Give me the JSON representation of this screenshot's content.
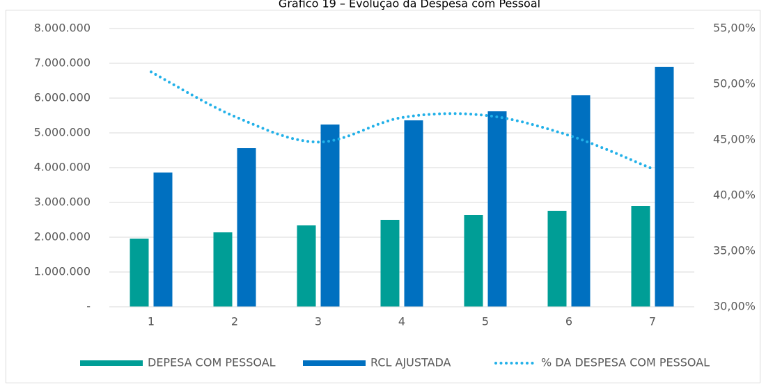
{
  "chart_data": {
    "type": "bar_line",
    "title": "Gráfico 19 – Evolução da Despesa com Pessoal",
    "categories": [
      "1",
      "2",
      "3",
      "4",
      "5",
      "6",
      "7"
    ],
    "series": [
      {
        "name": "DEPESA COM PESSOAL",
        "color": "#009e96",
        "type": "bar",
        "values": [
          1960000,
          2140000,
          2340000,
          2500000,
          2640000,
          2760000,
          2900000
        ]
      },
      {
        "name": "RCL AJUSTADA",
        "color": "#0070c0",
        "type": "bar",
        "values": [
          3860000,
          4560000,
          5240000,
          5360000,
          5620000,
          6080000,
          6900000
        ]
      },
      {
        "name": "% DA DESPESA COM PESSOAL",
        "color": "#21b0e8",
        "type": "line",
        "axis": "y2",
        "style": "dotted",
        "values": [
          51.1,
          47.1,
          44.8,
          47.0,
          47.2,
          45.4,
          42.4
        ]
      }
    ],
    "ylim": [
      0,
      8000000
    ],
    "yticks": [
      {
        "value": 0,
        "label": "-"
      },
      {
        "value": 1000000,
        "label": "1.000.000"
      },
      {
        "value": 2000000,
        "label": "2.000.000"
      },
      {
        "value": 3000000,
        "label": "3.000.000"
      },
      {
        "value": 4000000,
        "label": "4.000.000"
      },
      {
        "value": 5000000,
        "label": "5.000.000"
      },
      {
        "value": 6000000,
        "label": "6.000.000"
      },
      {
        "value": 7000000,
        "label": "7.000.000"
      },
      {
        "value": 8000000,
        "label": "8.000.000"
      }
    ],
    "y2lim": [
      30,
      55
    ],
    "y2ticks": [
      {
        "value": 30,
        "label": "30,00%"
      },
      {
        "value": 35,
        "label": "35,00%"
      },
      {
        "value": 40,
        "label": "40,00%"
      },
      {
        "value": 45,
        "label": "45,00%"
      },
      {
        "value": 50,
        "label": "50,00%"
      },
      {
        "value": 55,
        "label": "55,00%"
      }
    ],
    "grid": true,
    "legend": "bottom"
  }
}
